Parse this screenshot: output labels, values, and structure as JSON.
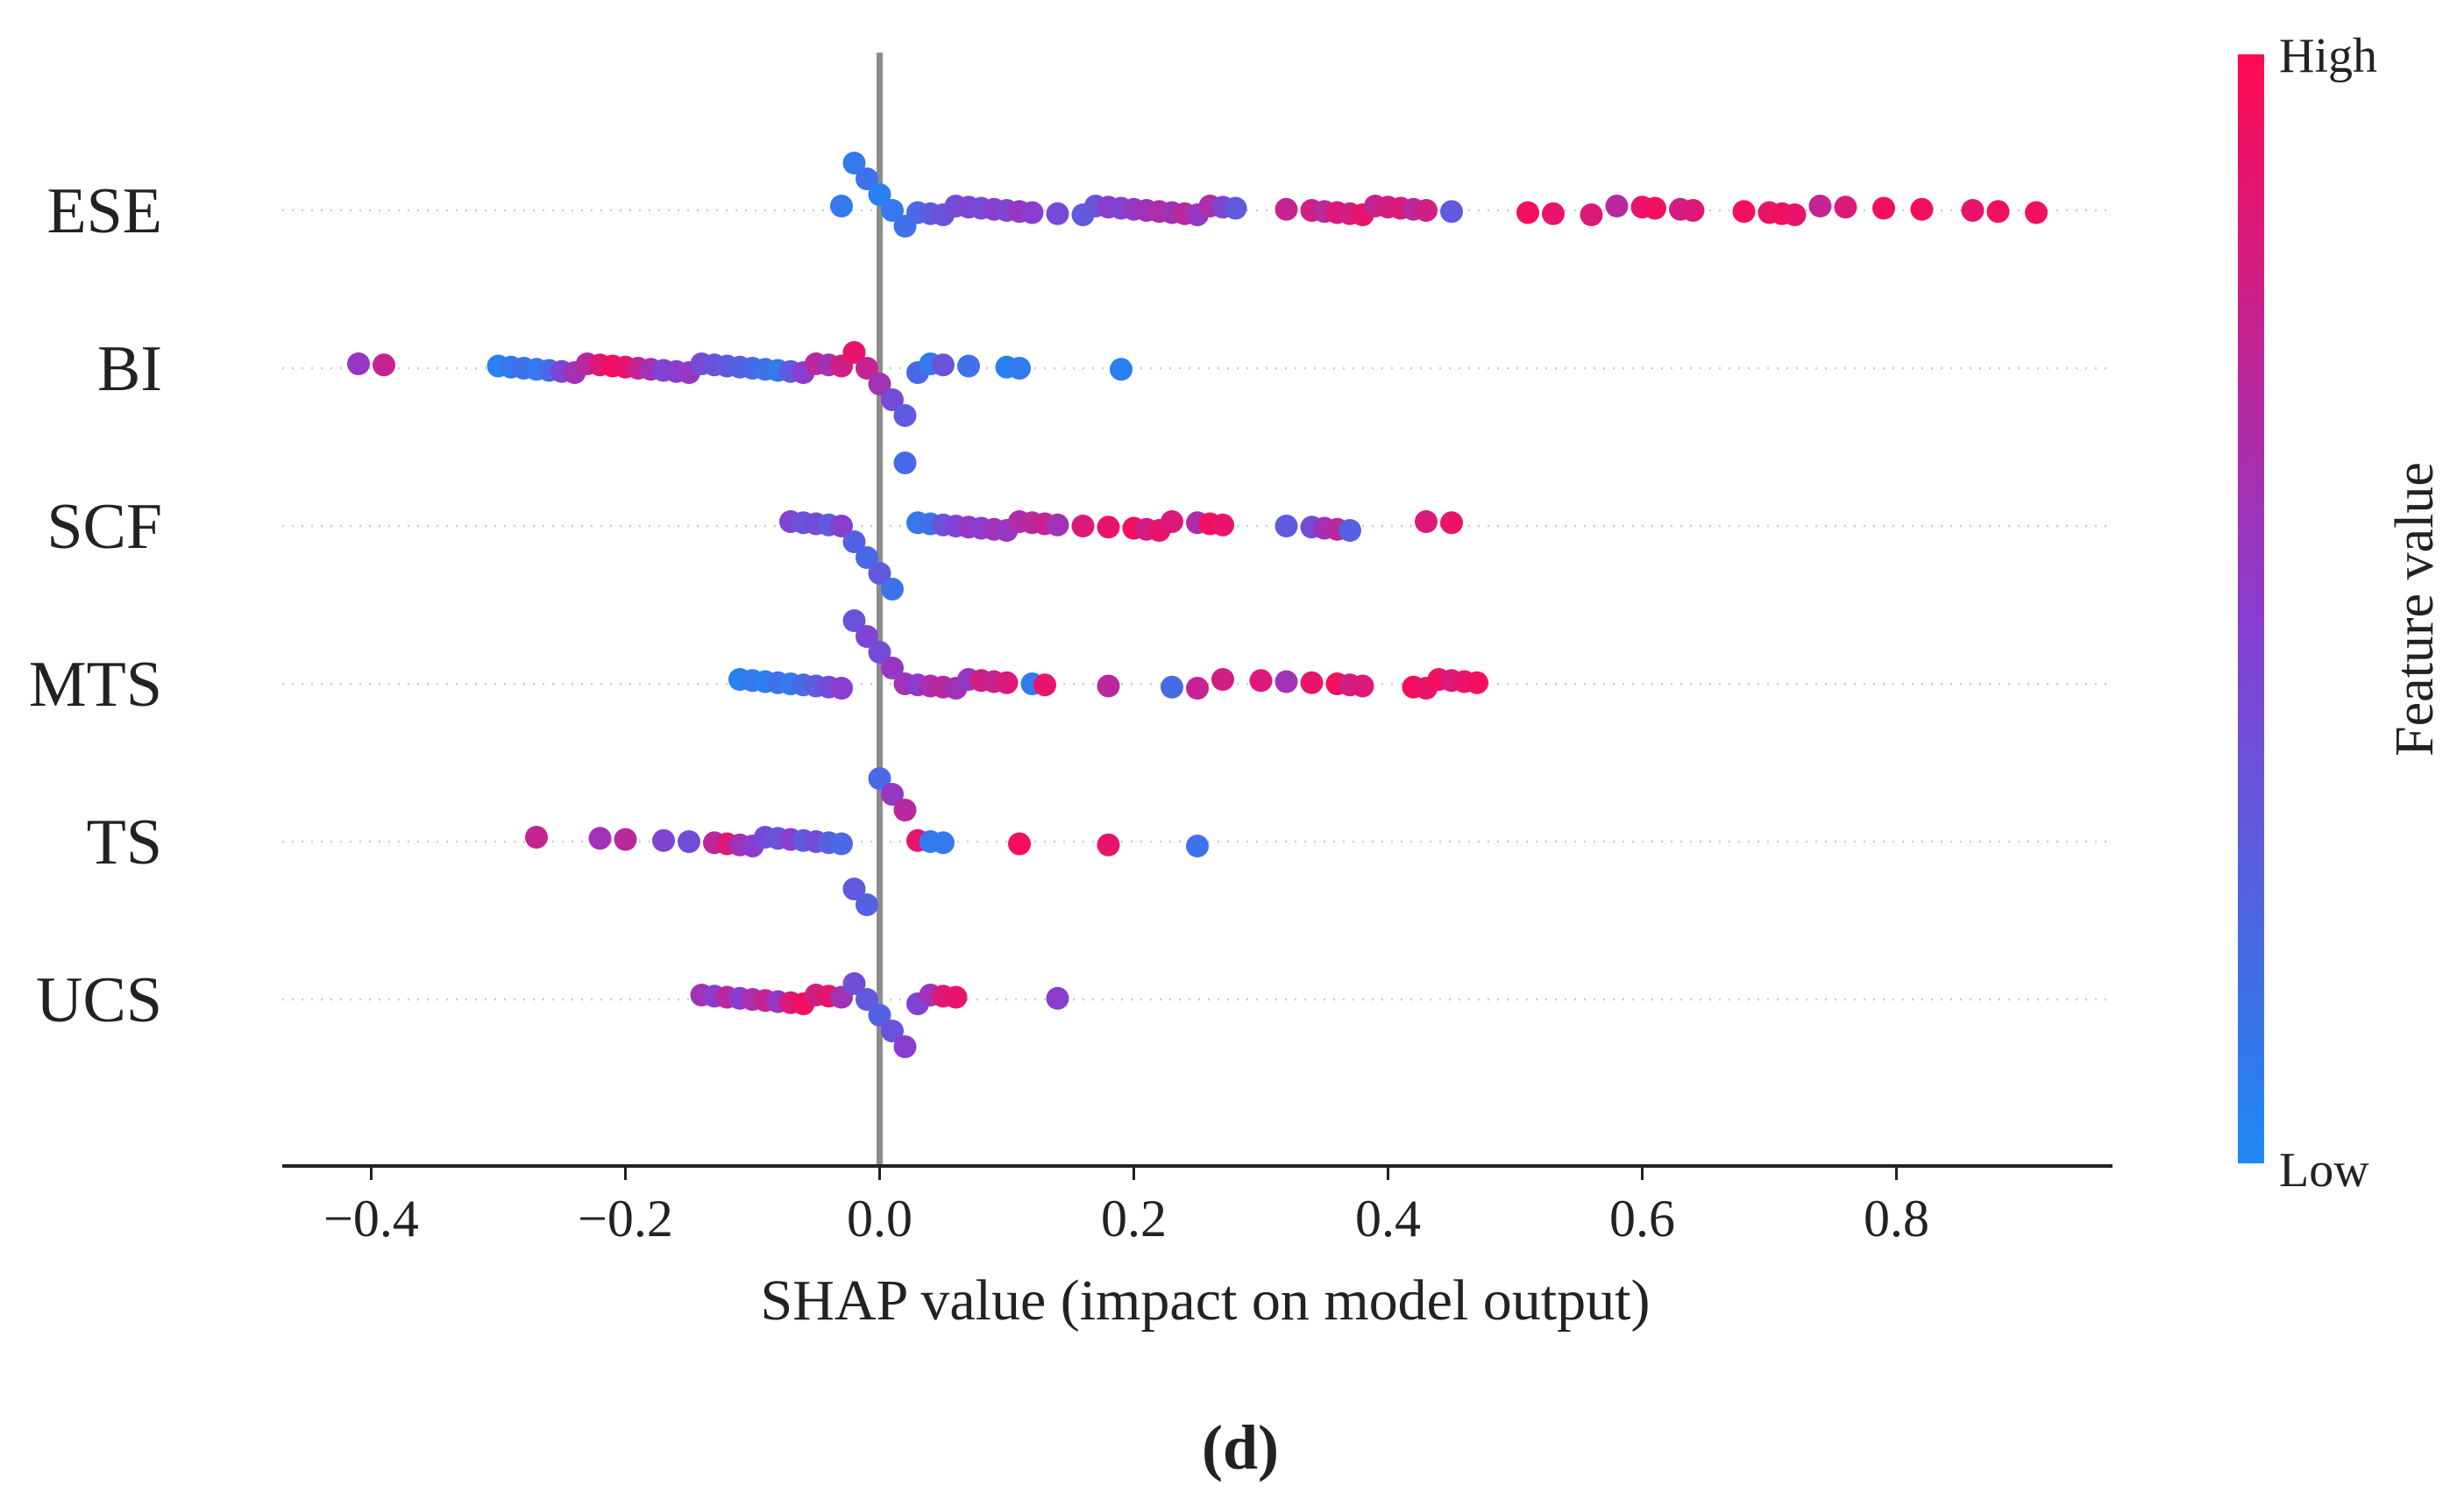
{
  "chart_data": {
    "type": "scatter",
    "subtype": "shap-beeswarm",
    "xlabel": "SHAP value (impact on model output)",
    "xlim": [
      -0.47,
      0.97
    ],
    "xticks": [
      -0.4,
      -0.2,
      0.0,
      0.2,
      0.4,
      0.6,
      0.8
    ],
    "xtick_labels": [
      "−0.4",
      "−0.2",
      "0.0",
      "0.2",
      "0.4",
      "0.6",
      "0.8"
    ],
    "zero_line": 0.0,
    "colorbar": {
      "title": "Feature value",
      "high_label": "High",
      "low_label": "Low",
      "low_color": "#1e88f5",
      "high_color": "#ff0a52"
    },
    "panel_label": "(d)",
    "features": [
      {
        "name": "ESE",
        "points": [
          [
            -0.03,
            0.1
          ],
          [
            -0.02,
            0.1
          ],
          [
            -0.01,
            0.15
          ],
          [
            0.0,
            0.05
          ],
          [
            0.01,
            0.1
          ],
          [
            0.02,
            0.15
          ],
          [
            0.03,
            0.2
          ],
          [
            0.04,
            0.3
          ],
          [
            0.05,
            0.35
          ],
          [
            0.06,
            0.4
          ],
          [
            0.07,
            0.45
          ],
          [
            0.08,
            0.4
          ],
          [
            0.09,
            0.5
          ],
          [
            0.1,
            0.45
          ],
          [
            0.11,
            0.55
          ],
          [
            0.12,
            0.5
          ],
          [
            0.14,
            0.4
          ],
          [
            0.16,
            0.3
          ],
          [
            0.17,
            0.35
          ],
          [
            0.18,
            0.5
          ],
          [
            0.19,
            0.45
          ],
          [
            0.2,
            0.55
          ],
          [
            0.21,
            0.6
          ],
          [
            0.22,
            0.65
          ],
          [
            0.23,
            0.6
          ],
          [
            0.24,
            0.7
          ],
          [
            0.25,
            0.55
          ],
          [
            0.26,
            0.65
          ],
          [
            0.27,
            0.45
          ],
          [
            0.28,
            0.3
          ],
          [
            0.32,
            0.75
          ],
          [
            0.34,
            0.8
          ],
          [
            0.35,
            0.7
          ],
          [
            0.36,
            0.85
          ],
          [
            0.37,
            0.8
          ],
          [
            0.38,
            0.9
          ],
          [
            0.39,
            0.75
          ],
          [
            0.4,
            0.8
          ],
          [
            0.41,
            0.85
          ],
          [
            0.42,
            0.7
          ],
          [
            0.43,
            0.8
          ],
          [
            0.45,
            0.3
          ],
          [
            0.51,
            0.95
          ],
          [
            0.53,
            0.9
          ],
          [
            0.56,
            0.85
          ],
          [
            0.58,
            0.7
          ],
          [
            0.6,
            0.9
          ],
          [
            0.61,
            0.95
          ],
          [
            0.63,
            0.8
          ],
          [
            0.64,
            0.85
          ],
          [
            0.68,
            0.95
          ],
          [
            0.7,
            0.9
          ],
          [
            0.71,
            0.95
          ],
          [
            0.72,
            0.9
          ],
          [
            0.74,
            0.75
          ],
          [
            0.76,
            0.85
          ],
          [
            0.79,
            0.95
          ],
          [
            0.82,
            0.95
          ],
          [
            0.86,
            0.9
          ],
          [
            0.88,
            0.95
          ],
          [
            0.91,
            0.95
          ]
        ]
      },
      {
        "name": "BI",
        "points": [
          [
            -0.41,
            0.55
          ],
          [
            -0.39,
            0.75
          ],
          [
            -0.3,
            0.05
          ],
          [
            -0.29,
            0.1
          ],
          [
            -0.28,
            0.15
          ],
          [
            -0.27,
            0.1
          ],
          [
            -0.26,
            0.2
          ],
          [
            -0.25,
            0.45
          ],
          [
            -0.24,
            0.6
          ],
          [
            -0.23,
            0.7
          ],
          [
            -0.22,
            0.85
          ],
          [
            -0.21,
            0.95
          ],
          [
            -0.2,
            0.9
          ],
          [
            -0.19,
            0.75
          ],
          [
            -0.18,
            0.6
          ],
          [
            -0.17,
            0.45
          ],
          [
            -0.16,
            0.5
          ],
          [
            -0.15,
            0.55
          ],
          [
            -0.14,
            0.4
          ],
          [
            -0.13,
            0.35
          ],
          [
            -0.12,
            0.3
          ],
          [
            -0.11,
            0.25
          ],
          [
            -0.1,
            0.2
          ],
          [
            -0.09,
            0.15
          ],
          [
            -0.08,
            0.1
          ],
          [
            -0.07,
            0.3
          ],
          [
            -0.06,
            0.5
          ],
          [
            -0.05,
            0.7
          ],
          [
            -0.04,
            0.6
          ],
          [
            -0.03,
            0.8
          ],
          [
            -0.02,
            0.9
          ],
          [
            -0.01,
            0.75
          ],
          [
            0.0,
            0.6
          ],
          [
            0.01,
            0.4
          ],
          [
            0.02,
            0.3
          ],
          [
            0.03,
            0.2
          ],
          [
            0.04,
            0.1
          ],
          [
            0.05,
            0.35
          ],
          [
            0.07,
            0.15
          ],
          [
            0.1,
            0.05
          ],
          [
            0.11,
            0.1
          ],
          [
            0.19,
            0.05
          ]
        ]
      },
      {
        "name": "SCF",
        "points": [
          [
            -0.07,
            0.45
          ],
          [
            -0.06,
            0.35
          ],
          [
            -0.05,
            0.4
          ],
          [
            -0.04,
            0.3
          ],
          [
            -0.03,
            0.5
          ],
          [
            -0.02,
            0.25
          ],
          [
            -0.01,
            0.2
          ],
          [
            0.0,
            0.3
          ],
          [
            0.01,
            0.15
          ],
          [
            0.02,
            0.2
          ],
          [
            0.03,
            0.1
          ],
          [
            0.04,
            0.15
          ],
          [
            0.05,
            0.35
          ],
          [
            0.06,
            0.45
          ],
          [
            0.07,
            0.55
          ],
          [
            0.08,
            0.5
          ],
          [
            0.09,
            0.6
          ],
          [
            0.1,
            0.55
          ],
          [
            0.11,
            0.65
          ],
          [
            0.12,
            0.7
          ],
          [
            0.13,
            0.75
          ],
          [
            0.14,
            0.6
          ],
          [
            0.16,
            0.85
          ],
          [
            0.18,
            0.9
          ],
          [
            0.2,
            0.95
          ],
          [
            0.21,
            0.8
          ],
          [
            0.22,
            0.9
          ],
          [
            0.23,
            0.85
          ],
          [
            0.25,
            0.65
          ],
          [
            0.26,
            0.95
          ],
          [
            0.27,
            0.9
          ],
          [
            0.32,
            0.3
          ],
          [
            0.34,
            0.4
          ],
          [
            0.35,
            0.6
          ],
          [
            0.36,
            0.7
          ],
          [
            0.37,
            0.25
          ],
          [
            0.43,
            0.85
          ],
          [
            0.45,
            0.9
          ]
        ]
      },
      {
        "name": "MTS",
        "points": [
          [
            -0.11,
            0.05
          ],
          [
            -0.1,
            0.1
          ],
          [
            -0.09,
            0.05
          ],
          [
            -0.08,
            0.15
          ],
          [
            -0.07,
            0.1
          ],
          [
            -0.06,
            0.2
          ],
          [
            -0.05,
            0.3
          ],
          [
            -0.04,
            0.4
          ],
          [
            -0.03,
            0.5
          ],
          [
            -0.02,
            0.35
          ],
          [
            -0.01,
            0.45
          ],
          [
            0.0,
            0.4
          ],
          [
            0.01,
            0.55
          ],
          [
            0.02,
            0.6
          ],
          [
            0.03,
            0.5
          ],
          [
            0.04,
            0.65
          ],
          [
            0.05,
            0.7
          ],
          [
            0.06,
            0.6
          ],
          [
            0.07,
            0.55
          ],
          [
            0.08,
            0.8
          ],
          [
            0.09,
            0.75
          ],
          [
            0.1,
            0.85
          ],
          [
            0.12,
            0.1
          ],
          [
            0.13,
            0.9
          ],
          [
            0.18,
            0.7
          ],
          [
            0.23,
            0.2
          ],
          [
            0.25,
            0.75
          ],
          [
            0.27,
            0.8
          ],
          [
            0.3,
            0.85
          ],
          [
            0.32,
            0.6
          ],
          [
            0.34,
            0.9
          ],
          [
            0.36,
            0.95
          ],
          [
            0.37,
            0.8
          ],
          [
            0.38,
            0.85
          ],
          [
            0.42,
            0.95
          ],
          [
            0.43,
            0.9
          ],
          [
            0.44,
            0.95
          ],
          [
            0.45,
            0.85
          ],
          [
            0.46,
            0.9
          ],
          [
            0.47,
            0.95
          ]
        ]
      },
      {
        "name": "TS",
        "points": [
          [
            -0.27,
            0.75
          ],
          [
            -0.22,
            0.6
          ],
          [
            -0.2,
            0.7
          ],
          [
            -0.17,
            0.45
          ],
          [
            -0.15,
            0.4
          ],
          [
            -0.13,
            0.7
          ],
          [
            -0.12,
            0.85
          ],
          [
            -0.11,
            0.6
          ],
          [
            -0.1,
            0.5
          ],
          [
            -0.09,
            0.4
          ],
          [
            -0.08,
            0.35
          ],
          [
            -0.07,
            0.5
          ],
          [
            -0.06,
            0.3
          ],
          [
            -0.05,
            0.4
          ],
          [
            -0.04,
            0.25
          ],
          [
            -0.03,
            0.2
          ],
          [
            -0.02,
            0.3
          ],
          [
            -0.01,
            0.25
          ],
          [
            0.0,
            0.2
          ],
          [
            0.01,
            0.55
          ],
          [
            0.02,
            0.7
          ],
          [
            0.03,
            0.9
          ],
          [
            0.04,
            0.1
          ],
          [
            0.05,
            0.1
          ],
          [
            0.11,
            0.95
          ],
          [
            0.18,
            0.9
          ],
          [
            0.25,
            0.15
          ]
        ]
      },
      {
        "name": "UCS",
        "points": [
          [
            -0.14,
            0.6
          ],
          [
            -0.13,
            0.5
          ],
          [
            -0.12,
            0.7
          ],
          [
            -0.11,
            0.5
          ],
          [
            -0.1,
            0.65
          ],
          [
            -0.09,
            0.75
          ],
          [
            -0.08,
            0.55
          ],
          [
            -0.07,
            0.85
          ],
          [
            -0.06,
            0.95
          ],
          [
            -0.05,
            0.8
          ],
          [
            -0.04,
            0.9
          ],
          [
            -0.03,
            0.6
          ],
          [
            -0.02,
            0.4
          ],
          [
            -0.01,
            0.3
          ],
          [
            0.0,
            0.25
          ],
          [
            0.01,
            0.35
          ],
          [
            0.02,
            0.5
          ],
          [
            0.03,
            0.45
          ],
          [
            0.04,
            0.6
          ],
          [
            0.05,
            0.85
          ],
          [
            0.06,
            0.9
          ],
          [
            0.14,
            0.5
          ]
        ]
      }
    ]
  }
}
